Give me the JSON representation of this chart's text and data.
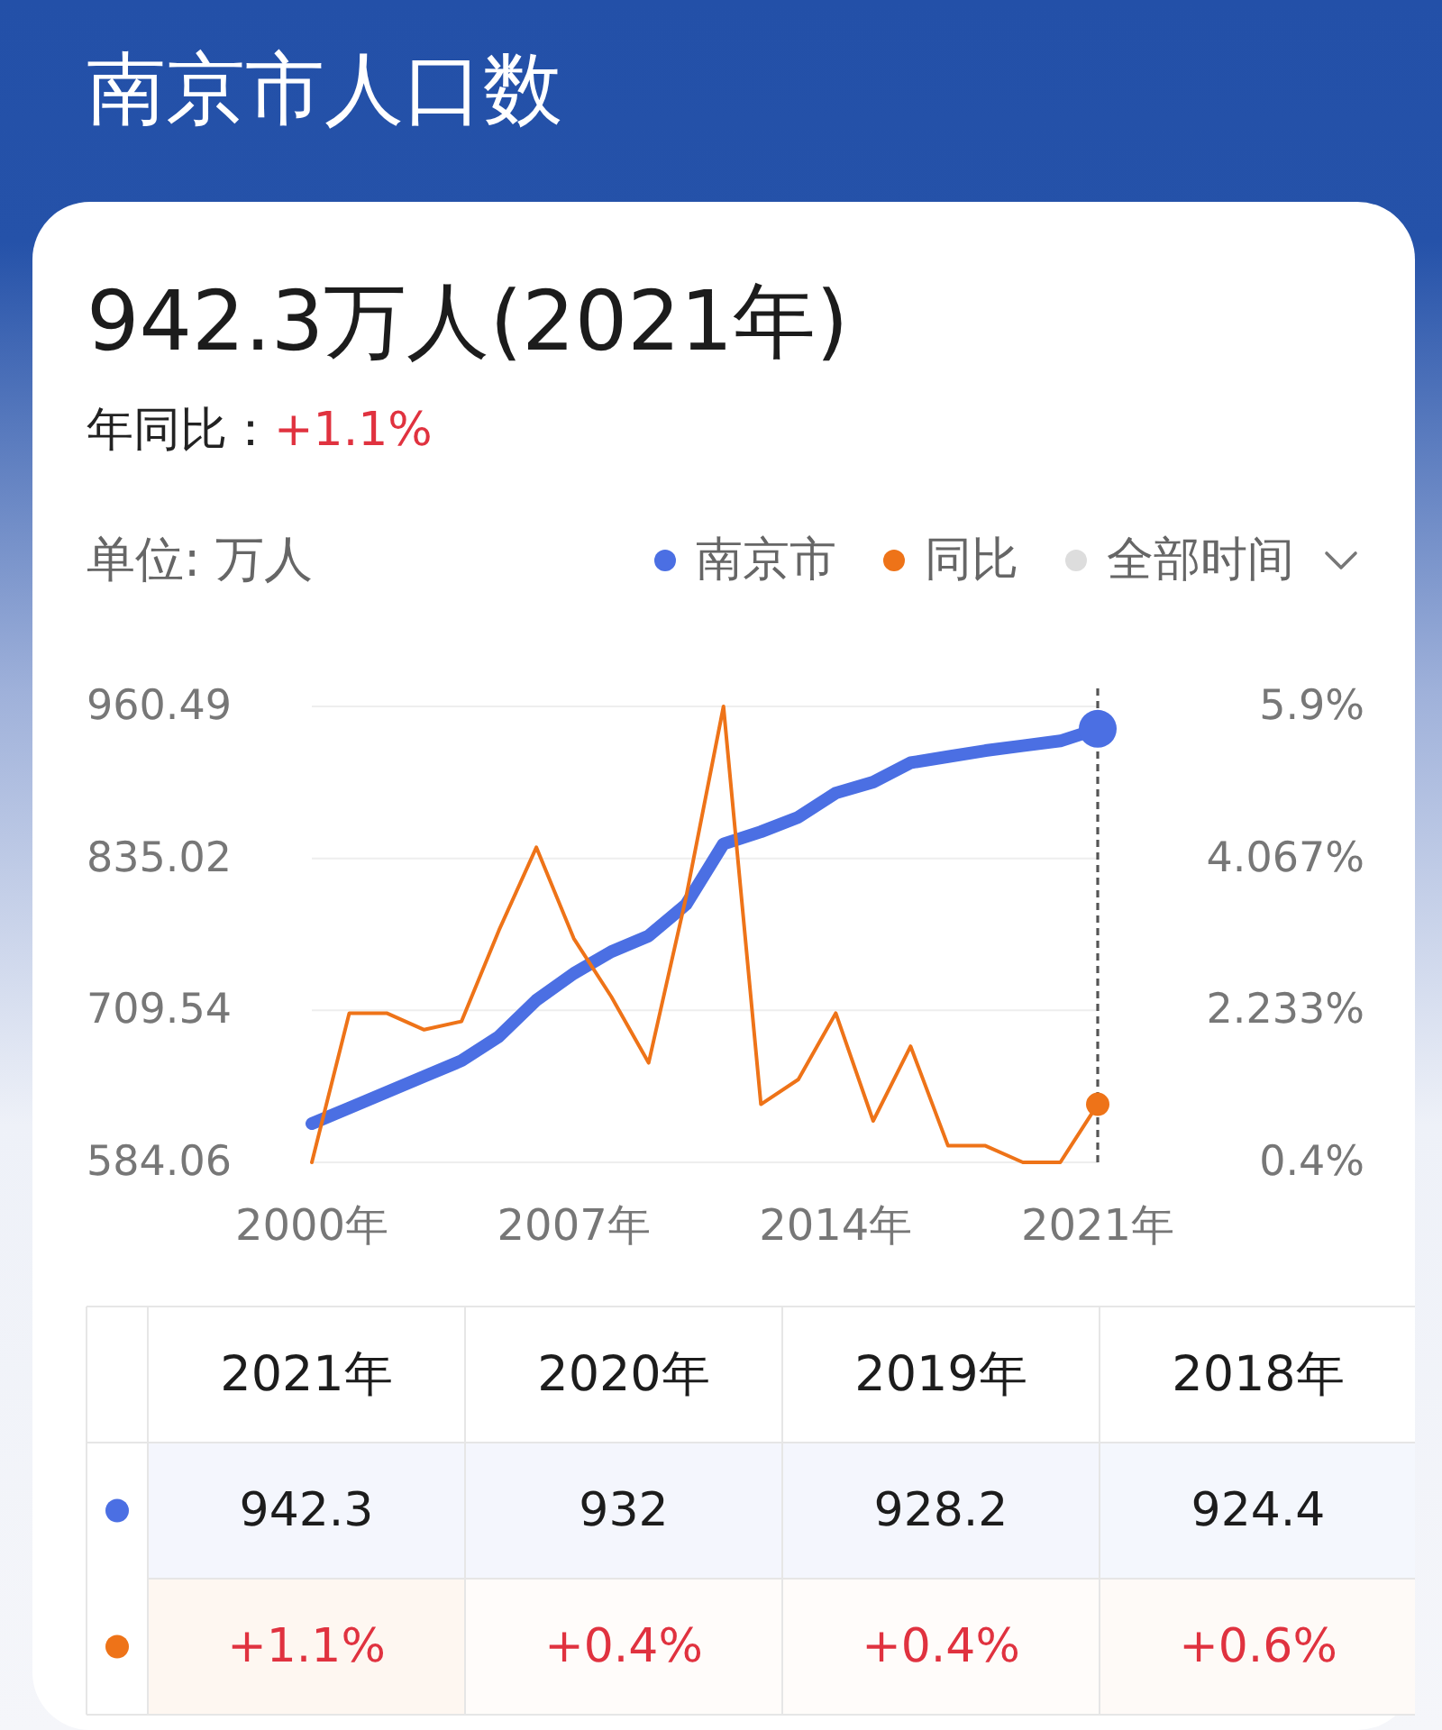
{
  "chart_data": [
    {
      "type": "line",
      "title": "南京市人口数",
      "subtitle": "942.3万人(2021年)",
      "ylabel": "单位: 万人",
      "annotations": [
        "年同比：",
        "+1.1%",
        "全部时间"
      ],
      "x": [
        2000,
        2001,
        2002,
        2003,
        2004,
        2005,
        2006,
        2007,
        2008,
        2009,
        2010,
        2011,
        2012,
        2013,
        2014,
        2015,
        2016,
        2017,
        2018,
        2019,
        2020,
        2021
      ],
      "xlim": [
        2000,
        2021
      ],
      "xticks": [
        {
          "value": 2000,
          "label": "2000年"
        },
        {
          "value": 2007,
          "label": "2007年"
        },
        {
          "value": 2014,
          "label": "2014年"
        },
        {
          "value": 2021,
          "label": "2021年"
        }
      ],
      "ylim": [
        584.06,
        960.49
      ],
      "yticks": [
        584.06,
        709.54,
        835.02,
        960.49
      ],
      "y2lim": [
        0.4,
        5.9
      ],
      "y2ticks": [
        {
          "value": 0.4,
          "label": "0.4%"
        },
        {
          "value": 2.233,
          "label": "2.233%"
        },
        {
          "value": 4.067,
          "label": "4.067%"
        },
        {
          "value": 5.9,
          "label": "5.9%"
        }
      ],
      "series": [
        {
          "name": "南京市",
          "color": "#4b6fe3",
          "values": [
            616,
            629,
            642,
            655,
            668,
            688,
            718,
            740,
            758,
            771,
            797,
            847,
            857,
            869,
            889,
            898,
            914,
            919,
            924,
            928,
            932,
            942
          ]
        },
        {
          "name": "同比",
          "color": "#ee7318",
          "axis": "y2",
          "values": [
            0.4,
            2.2,
            2.2,
            2.0,
            2.1,
            3.2,
            4.2,
            3.1,
            2.4,
            1.6,
            3.6,
            5.9,
            1.1,
            1.4,
            2.2,
            0.9,
            1.8,
            0.6,
            0.6,
            0.4,
            0.4,
            1.1
          ]
        },
        {
          "type": "scatter",
          "color": "#4b6fe3",
          "x": [
            2021
          ],
          "values": [
            942
          ]
        },
        {
          "type": "scatter",
          "color": "#ee7318",
          "axis": "y2",
          "x": [
            2021
          ],
          "values": [
            1.1
          ]
        }
      ],
      "legend": "top right",
      "grid": "y",
      "ref_lines": [
        {
          "axis": "x",
          "value": 2021,
          "line_style": "dashed",
          "color": "#555555"
        }
      ]
    },
    {
      "type": "heatmap",
      "categories": [
        "2021年",
        "2020年",
        "2019年",
        "2018年"
      ],
      "y_categories": [
        null,
        null
      ],
      "cells": [
        [
          942.3,
          932,
          928.2,
          924.4
        ],
        [
          1.1,
          0.4,
          0.4,
          0.6
        ]
      ],
      "cell_labels": [
        [
          "942.3",
          "932",
          "928.2",
          "924.4"
        ],
        [
          "+1.1%",
          "+0.4%",
          "+0.4%",
          "+0.6%"
        ]
      ],
      "colors": [
        "#4b6fe3",
        "#ee7318"
      ]
    }
  ]
}
